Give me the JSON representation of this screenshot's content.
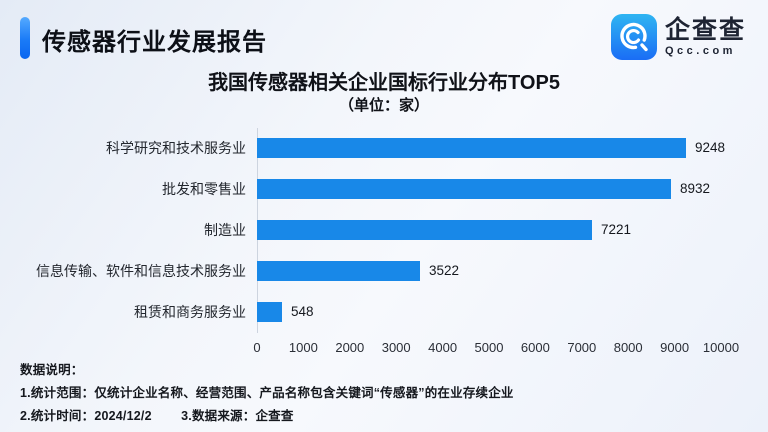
{
  "header": {
    "report_title": "传感器行业发展报告",
    "logo": {
      "brand_cn": "企查查",
      "brand_en": "Qcc.com"
    }
  },
  "chart_data": {
    "type": "bar",
    "orientation": "horizontal",
    "title": "我国传感器相关企业国标行业分布TOP5",
    "subtitle": "（单位：家）",
    "categories": [
      "科学研究和技术服务业",
      "批发和零售业",
      "制造业",
      "信息传输、软件和信息技术服务业",
      "租赁和商务服务业"
    ],
    "values": [
      9248,
      8932,
      7221,
      3522,
      548
    ],
    "xlim": [
      0,
      10000
    ],
    "ticks": [
      0,
      1000,
      2000,
      3000,
      4000,
      5000,
      6000,
      7000,
      8000,
      9000,
      10000
    ],
    "grid": false,
    "bar_color": "#1888e8"
  },
  "footnotes": {
    "heading": "数据说明：",
    "line1": "1.统计范围：仅统计企业名称、经营范围、产品名称包含关键词“传感器”的在业存续企业",
    "line2": "2.统计时间：2024/12/2        3.数据来源：企查查"
  },
  "colors": {
    "bar": "#1888e8",
    "accent_gradient_top": "#55aaff",
    "accent_gradient_bottom": "#0b66f0",
    "logo_gradient_top": "#2fb5f2",
    "logo_gradient_bottom": "#1a6df5",
    "text_dark": "#15181e"
  }
}
